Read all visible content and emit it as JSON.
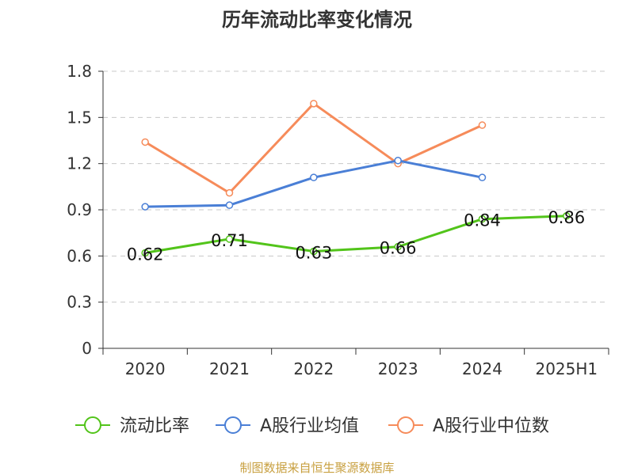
{
  "chart_data": {
    "type": "line",
    "title": "历年流动比率变化情况",
    "categories": [
      "2020",
      "2021",
      "2022",
      "2023",
      "2024",
      "2025H1"
    ],
    "ylim": [
      0,
      1.8
    ],
    "yticks": [
      "0",
      "0.3",
      "0.6",
      "0.9",
      "1.2",
      "1.5",
      "1.8"
    ],
    "grid": true,
    "legend_position": "bottom",
    "series": [
      {
        "name": "流动比率",
        "color": "#52c41a",
        "values": [
          0.62,
          0.71,
          0.63,
          0.66,
          0.84,
          0.86
        ],
        "labels": [
          "0.62",
          "0.71",
          "0.63",
          "0.66",
          "0.84",
          "0.86"
        ]
      },
      {
        "name": "A股行业均值",
        "color": "#4a7fd6",
        "values": [
          0.92,
          0.93,
          1.11,
          1.22,
          1.11,
          null
        ]
      },
      {
        "name": "A股行业中位数",
        "color": "#f68b5a",
        "values": [
          1.34,
          1.01,
          1.59,
          1.2,
          1.45,
          null
        ]
      }
    ],
    "source": "制图数据来自恒生聚源数据库"
  }
}
